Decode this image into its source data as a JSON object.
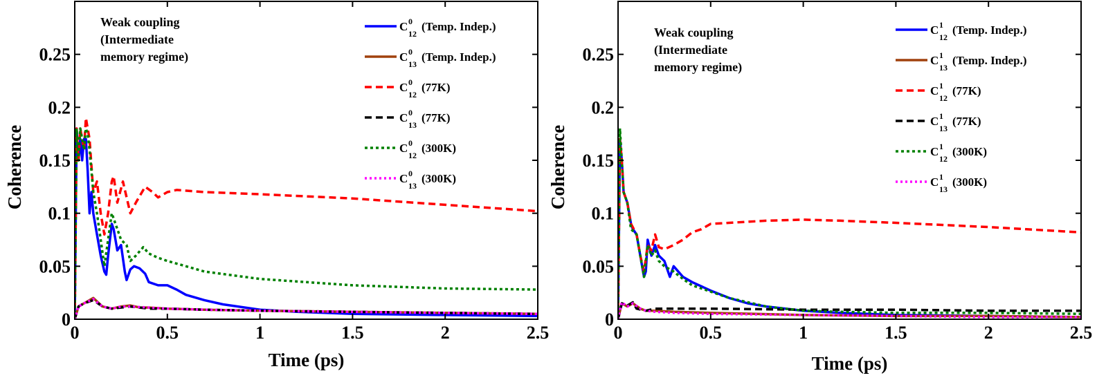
{
  "chart_data": [
    {
      "type": "line",
      "xlabel": "Time (ps)",
      "ylabel": "Coherence",
      "xlim": [
        0,
        2.5
      ],
      "ylim": [
        0,
        0.3
      ],
      "xticks": [
        "0",
        "0.5",
        "1",
        "1.5",
        "2",
        "2.5"
      ],
      "xtick_values": [
        0,
        0.5,
        1,
        1.5,
        2,
        2.5
      ],
      "yticks": [
        "0",
        "0.05",
        "0.1",
        "0.15",
        "0.2",
        "0.25"
      ],
      "ytick_values": [
        0,
        0.05,
        0.1,
        0.15,
        0.2,
        0.25
      ],
      "grid": false,
      "legend_position": "top-right",
      "annotation": [
        "Weak coupling",
        "(Intermediate",
        "memory regime)"
      ],
      "series": [
        {
          "name": "C",
          "sup": "0",
          "sub": "12",
          "suffix": "(Temp. Indep.)",
          "color": "#0000ff",
          "dash": "solid",
          "x": [
            0,
            0.01,
            0.02,
            0.03,
            0.04,
            0.05,
            0.06,
            0.07,
            0.08,
            0.09,
            0.1,
            0.12,
            0.14,
            0.16,
            0.17,
            0.18,
            0.2,
            0.21,
            0.23,
            0.25,
            0.27,
            0.28,
            0.3,
            0.32,
            0.35,
            0.38,
            0.4,
            0.45,
            0.5,
            0.55,
            0.6,
            0.7,
            0.8,
            1.0,
            1.2,
            1.5,
            2.0,
            2.5
          ],
          "y": [
            0,
            0.18,
            0.15,
            0.17,
            0.15,
            0.17,
            0.17,
            0.14,
            0.1,
            0.12,
            0.1,
            0.08,
            0.06,
            0.045,
            0.042,
            0.06,
            0.09,
            0.085,
            0.065,
            0.07,
            0.045,
            0.037,
            0.047,
            0.05,
            0.048,
            0.043,
            0.035,
            0.032,
            0.032,
            0.028,
            0.023,
            0.018,
            0.014,
            0.009,
            0.007,
            0.005,
            0.004,
            0.003
          ]
        },
        {
          "name": "C",
          "sup": "0",
          "sub": "13",
          "suffix": "(Temp. Indep.)",
          "color": "#a0410d",
          "dash": "solid",
          "x": [
            0,
            0.02,
            0.05,
            0.1,
            0.15,
            0.2,
            0.25,
            0.3,
            0.35,
            0.4,
            0.5,
            0.7,
            1.0,
            1.5,
            2.0,
            2.5
          ],
          "y": [
            0,
            0.012,
            0.015,
            0.02,
            0.012,
            0.01,
            0.012,
            0.013,
            0.011,
            0.011,
            0.01,
            0.009,
            0.008,
            0.007,
            0.006,
            0.005
          ]
        },
        {
          "name": "C",
          "sup": "0",
          "sub": "12",
          "suffix": "(77K)",
          "color": "#ff0000",
          "dash": "10,6",
          "x": [
            0,
            0.01,
            0.02,
            0.03,
            0.05,
            0.06,
            0.07,
            0.08,
            0.1,
            0.12,
            0.14,
            0.16,
            0.18,
            0.2,
            0.21,
            0.23,
            0.26,
            0.3,
            0.33,
            0.38,
            0.42,
            0.45,
            0.5,
            0.55,
            0.7,
            1.0,
            1.5,
            2.0,
            2.5
          ],
          "y": [
            0,
            0.18,
            0.15,
            0.18,
            0.16,
            0.19,
            0.18,
            0.17,
            0.12,
            0.13,
            0.1,
            0.08,
            0.1,
            0.13,
            0.135,
            0.11,
            0.13,
            0.1,
            0.11,
            0.125,
            0.12,
            0.115,
            0.12,
            0.122,
            0.12,
            0.118,
            0.114,
            0.108,
            0.102
          ]
        },
        {
          "name": "C",
          "sup": "0",
          "sub": "13",
          "suffix": "(77K)",
          "color": "#000000",
          "dash": "10,6",
          "x": [
            0,
            0.02,
            0.05,
            0.1,
            0.15,
            0.2,
            0.25,
            0.3,
            0.4,
            0.5,
            0.7,
            1.0,
            1.5,
            2.0,
            2.5
          ],
          "y": [
            0,
            0.012,
            0.015,
            0.018,
            0.012,
            0.01,
            0.011,
            0.012,
            0.01,
            0.01,
            0.009,
            0.008,
            0.007,
            0.006,
            0.005
          ]
        },
        {
          "name": "C",
          "sup": "0",
          "sub": "12",
          "suffix": "(300K)",
          "color": "#008000",
          "dash": "4,4",
          "x": [
            0,
            0.01,
            0.02,
            0.03,
            0.05,
            0.06,
            0.07,
            0.08,
            0.1,
            0.12,
            0.14,
            0.16,
            0.18,
            0.2,
            0.22,
            0.25,
            0.28,
            0.3,
            0.33,
            0.37,
            0.4,
            0.45,
            0.5,
            0.6,
            0.7,
            1.0,
            1.5,
            2.0,
            2.5
          ],
          "y": [
            0,
            0.18,
            0.15,
            0.18,
            0.16,
            0.18,
            0.175,
            0.16,
            0.12,
            0.1,
            0.075,
            0.05,
            0.075,
            0.1,
            0.09,
            0.075,
            0.07,
            0.055,
            0.06,
            0.068,
            0.062,
            0.058,
            0.055,
            0.05,
            0.045,
            0.038,
            0.032,
            0.029,
            0.028
          ]
        },
        {
          "name": "C",
          "sup": "0",
          "sub": "13",
          "suffix": "(300K)",
          "color": "#ff00ff",
          "dash": "3,4",
          "x": [
            0,
            0.02,
            0.05,
            0.1,
            0.15,
            0.2,
            0.25,
            0.3,
            0.4,
            0.5,
            0.7,
            1.0,
            1.5,
            2.0,
            2.5
          ],
          "y": [
            0,
            0.012,
            0.015,
            0.019,
            0.012,
            0.01,
            0.012,
            0.012,
            0.011,
            0.01,
            0.009,
            0.008,
            0.007,
            0.006,
            0.005
          ]
        }
      ]
    },
    {
      "type": "line",
      "xlabel": "Time (ps)",
      "ylabel": "Coherence",
      "xlim": [
        0,
        2.5
      ],
      "ylim": [
        0,
        0.3
      ],
      "xticks": [
        "0",
        "0.5",
        "1",
        "1.5",
        "2",
        "2.5"
      ],
      "xtick_values": [
        0,
        0.5,
        1,
        1.5,
        2,
        2.5
      ],
      "yticks": [
        "0",
        "0.05",
        "0.1",
        "0.15",
        "0.2",
        "0.25"
      ],
      "ytick_values": [
        0,
        0.05,
        0.1,
        0.15,
        0.2,
        0.25
      ],
      "grid": false,
      "legend_position": "top-right",
      "annotation": [
        "Weak coupling",
        "(Intermediate",
        "memory regime)"
      ],
      "series": [
        {
          "name": "C",
          "sup": "1",
          "sub": "12",
          "suffix": "(Temp. Indep.)",
          "color": "#0000ff",
          "dash": "solid",
          "x": [
            0,
            0.01,
            0.02,
            0.03,
            0.05,
            0.07,
            0.08,
            0.1,
            0.12,
            0.14,
            0.15,
            0.16,
            0.18,
            0.2,
            0.22,
            0.25,
            0.28,
            0.3,
            0.35,
            0.4,
            0.5,
            0.6,
            0.7,
            0.8,
            1.0,
            1.2,
            1.5,
            2.0,
            2.5
          ],
          "y": [
            0,
            0.17,
            0.15,
            0.12,
            0.11,
            0.09,
            0.085,
            0.08,
            0.06,
            0.04,
            0.045,
            0.075,
            0.06,
            0.07,
            0.06,
            0.055,
            0.04,
            0.05,
            0.04,
            0.035,
            0.027,
            0.02,
            0.015,
            0.012,
            0.008,
            0.006,
            0.004,
            0.003,
            0.002
          ]
        },
        {
          "name": "C",
          "sup": "1",
          "sub": "13",
          "suffix": "(Temp. Indep.)",
          "color": "#a0410d",
          "dash": "solid",
          "x": [
            0,
            0.02,
            0.05,
            0.08,
            0.12,
            0.15,
            0.2,
            0.3,
            0.5,
            1.0,
            1.5,
            2.0,
            2.5
          ],
          "y": [
            0,
            0.015,
            0.012,
            0.015,
            0.01,
            0.008,
            0.008,
            0.007,
            0.006,
            0.004,
            0.003,
            0.003,
            0.002
          ]
        },
        {
          "name": "C",
          "sup": "1",
          "sub": "12",
          "suffix": "(77K)",
          "color": "#ff0000",
          "dash": "10,6",
          "x": [
            0,
            0.01,
            0.02,
            0.03,
            0.05,
            0.07,
            0.1,
            0.12,
            0.14,
            0.16,
            0.18,
            0.2,
            0.22,
            0.25,
            0.3,
            0.35,
            0.4,
            0.45,
            0.5,
            0.6,
            0.8,
            1.0,
            1.2,
            1.5,
            2.0,
            2.5
          ],
          "y": [
            0,
            0.17,
            0.15,
            0.12,
            0.11,
            0.09,
            0.08,
            0.06,
            0.045,
            0.07,
            0.065,
            0.08,
            0.068,
            0.066,
            0.07,
            0.075,
            0.082,
            0.085,
            0.09,
            0.091,
            0.093,
            0.094,
            0.093,
            0.091,
            0.087,
            0.082
          ]
        },
        {
          "name": "C",
          "sup": "1",
          "sub": "13",
          "suffix": "(77K)",
          "color": "#000000",
          "dash": "10,6",
          "x": [
            0,
            0.02,
            0.05,
            0.08,
            0.1,
            0.15,
            0.2,
            0.3,
            0.5,
            1.0,
            1.5,
            2.0,
            2.5
          ],
          "y": [
            0,
            0.015,
            0.013,
            0.016,
            0.01,
            0.008,
            0.01,
            0.01,
            0.01,
            0.009,
            0.009,
            0.008,
            0.008
          ]
        },
        {
          "name": "C",
          "sup": "1",
          "sub": "12",
          "suffix": "(300K)",
          "color": "#008000",
          "dash": "4,4",
          "x": [
            0,
            0.01,
            0.02,
            0.03,
            0.05,
            0.07,
            0.1,
            0.12,
            0.14,
            0.16,
            0.18,
            0.2,
            0.22,
            0.25,
            0.3,
            0.35,
            0.4,
            0.5,
            0.6,
            0.8,
            1.0,
            1.2,
            1.5,
            2.0,
            2.5
          ],
          "y": [
            0,
            0.18,
            0.15,
            0.12,
            0.11,
            0.085,
            0.08,
            0.06,
            0.04,
            0.07,
            0.06,
            0.065,
            0.055,
            0.05,
            0.045,
            0.038,
            0.032,
            0.026,
            0.02,
            0.012,
            0.008,
            0.007,
            0.006,
            0.006,
            0.005
          ]
        },
        {
          "name": "C",
          "sup": "1",
          "sub": "13",
          "suffix": "(300K)",
          "color": "#ff00ff",
          "dash": "3,4",
          "x": [
            0,
            0.02,
            0.05,
            0.08,
            0.12,
            0.15,
            0.2,
            0.3,
            0.5,
            1.0,
            1.5,
            2.0,
            2.5
          ],
          "y": [
            0,
            0.016,
            0.012,
            0.015,
            0.01,
            0.008,
            0.007,
            0.006,
            0.005,
            0.004,
            0.003,
            0.002,
            0.002
          ]
        }
      ]
    }
  ]
}
